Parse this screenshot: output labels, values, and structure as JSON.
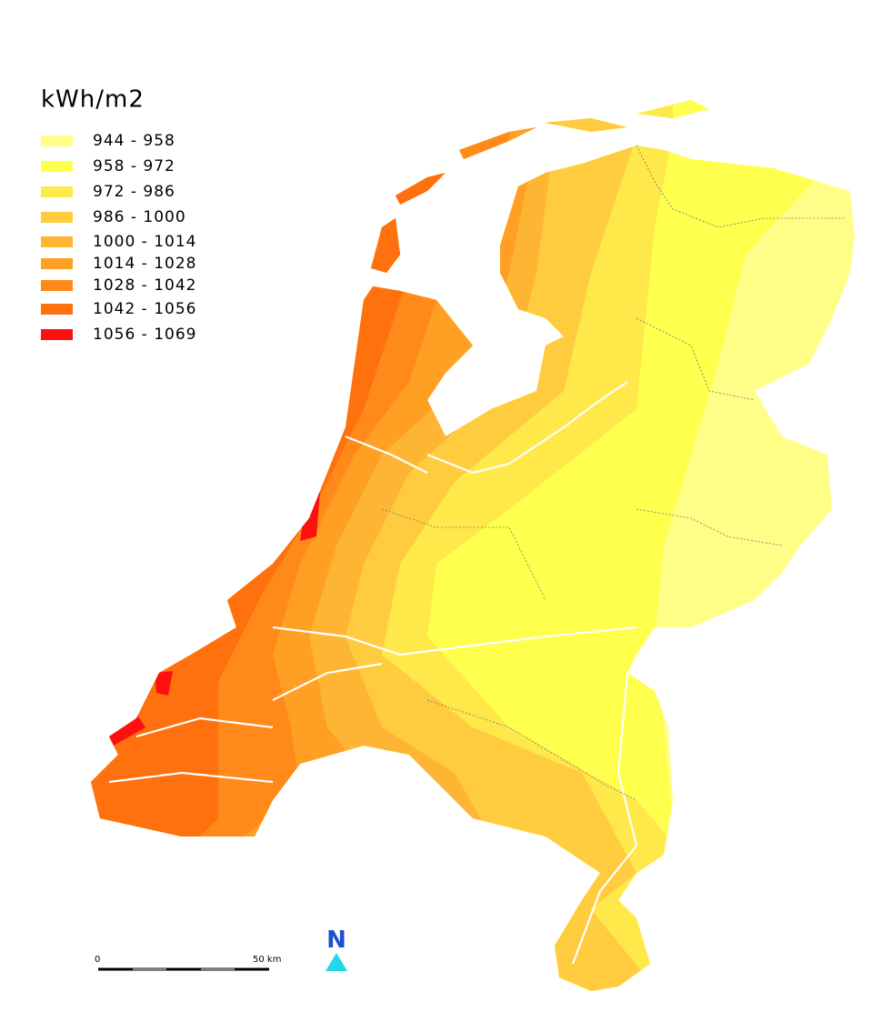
{
  "legend": {
    "title": "kWh/m2",
    "items": [
      {
        "label": "944 - 958",
        "color": "#ffff88"
      },
      {
        "label": "958 - 972",
        "color": "#ffff4d"
      },
      {
        "label": "972 - 986",
        "color": "#ffe84a"
      },
      {
        "label": "986 - 1000",
        "color": "#ffcc40"
      },
      {
        "label": "1000 - 1014",
        "color": "#ffb534"
      },
      {
        "label": "1014 - 1028",
        "color": "#ffa024"
      },
      {
        "label": "1028 - 1042",
        "color": "#ff8a1a"
      },
      {
        "label": "1042 - 1056",
        "color": "#ff700e"
      },
      {
        "label": "1056 - 1069",
        "color": "#ff1010"
      }
    ]
  },
  "scale_bar": {
    "start": "0",
    "end": "50 km"
  },
  "north_arrow": {
    "label": "N"
  }
}
